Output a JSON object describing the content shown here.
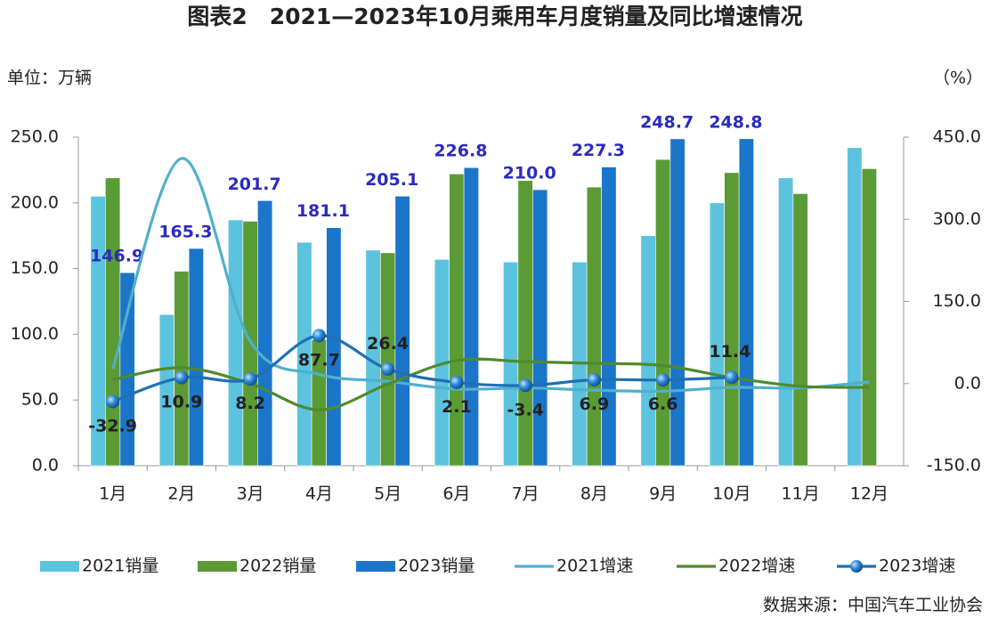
{
  "chart_data": {
    "type": "bar",
    "title": "图表2　2021—2023年10月乘用车月度销量及同比增速情况",
    "y_label": "单位：万辆",
    "y2_label": "（%）",
    "source": "数据来源：中国汽车工业协会",
    "categories": [
      "1月",
      "2月",
      "3月",
      "4月",
      "5月",
      "6月",
      "7月",
      "8月",
      "9月",
      "10月",
      "11月",
      "12月"
    ],
    "ylim": [
      0,
      250
    ],
    "yticks": [
      {
        "value": 0,
        "label": "0.0"
      },
      {
        "value": 50,
        "label": "50.0"
      },
      {
        "value": 100,
        "label": "100.0"
      },
      {
        "value": 150,
        "label": "150.0"
      },
      {
        "value": 200,
        "label": "200.0"
      },
      {
        "value": 250,
        "label": "250.0"
      }
    ],
    "y2lim": [
      -150,
      450
    ],
    "y2ticks": [
      {
        "value": -150,
        "label": "-150.0"
      },
      {
        "value": 0,
        "label": "0.0"
      },
      {
        "value": 150,
        "label": "150.0"
      },
      {
        "value": 300,
        "label": "300.0"
      },
      {
        "value": 450,
        "label": "450.0"
      }
    ],
    "grid": false,
    "legend": "bottom",
    "series": [
      {
        "name": "2021销量",
        "type": "bar",
        "color": "#5cc3de",
        "values": [
          205,
          115,
          187,
          170,
          164,
          157,
          155,
          155,
          175,
          200,
          219,
          242
        ]
      },
      {
        "name": "2022销量",
        "type": "bar",
        "color": "#5b9b35",
        "values": [
          219,
          148,
          186,
          96,
          162,
          222,
          217,
          212,
          233,
          223,
          207,
          226
        ]
      },
      {
        "name": "2023销量",
        "type": "bar",
        "color": "#1b75c9",
        "values": [
          146.9,
          165.3,
          201.7,
          181.1,
          205.1,
          226.8,
          210.0,
          227.3,
          248.7,
          248.8,
          null,
          null
        ],
        "value_labels": [
          "146.9",
          "165.3",
          "201.7",
          "181.1",
          "205.1",
          "226.8",
          "210.0",
          "227.3",
          "248.7",
          "248.8",
          null,
          null
        ]
      },
      {
        "name": "2021增速",
        "type": "line",
        "axis": "y2",
        "color": "#4fb0cc",
        "values": [
          27,
          411,
          77,
          17,
          4,
          -10,
          -8,
          -12,
          -14,
          -7,
          -8,
          3
        ]
      },
      {
        "name": "2022增速",
        "type": "line",
        "axis": "y2",
        "color": "#4e8a2e",
        "values": [
          7,
          29,
          0,
          -48,
          -1,
          42,
          40,
          37,
          33,
          11,
          -5,
          -7
        ]
      },
      {
        "name": "2023增速",
        "type": "line",
        "axis": "y2",
        "color": "#1f6fb5",
        "marker": true,
        "values": [
          -32.9,
          10.9,
          8.2,
          87.7,
          26.4,
          2.1,
          -3.4,
          6.9,
          6.6,
          11.4,
          null,
          null
        ]
      }
    ]
  }
}
